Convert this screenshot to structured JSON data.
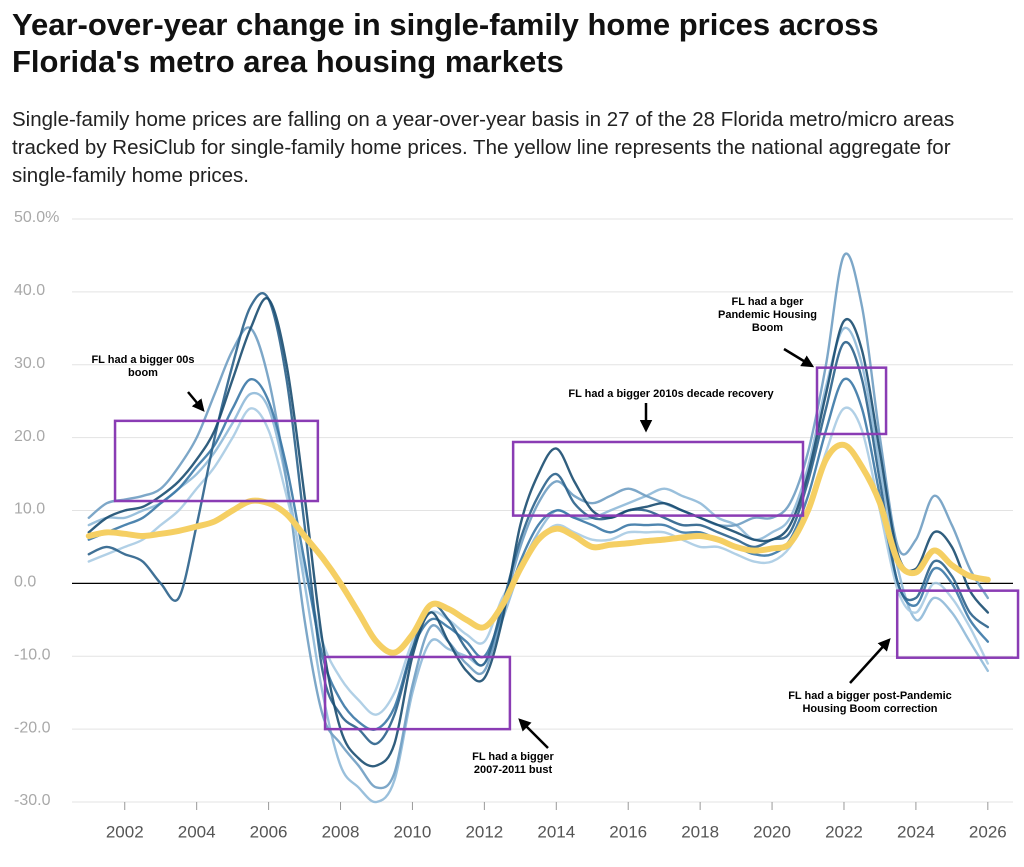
{
  "chart_data": {
    "type": "line",
    "title": "Year-over-year change in single-family home prices across Florida's metro area housing markets",
    "subtitle": "Single-family home prices are falling on a year-over-year basis in 27 of the 28 Florida metro/micro areas tracked by ResiClub for single-family home prices. The yellow line represents the national aggregate for single-family home prices.",
    "x": [
      2001,
      2001.5,
      2002,
      2002.5,
      2003,
      2003.5,
      2004,
      2004.5,
      2005,
      2005.5,
      2006,
      2006.5,
      2007,
      2007.5,
      2008,
      2008.5,
      2009,
      2009.5,
      2010,
      2010.5,
      2011,
      2011.5,
      2012,
      2012.5,
      2013,
      2013.5,
      2014,
      2014.5,
      2015,
      2015.5,
      2016,
      2016.5,
      2017,
      2017.5,
      2018,
      2018.5,
      2019,
      2019.5,
      2020,
      2020.5,
      2021,
      2021.5,
      2022,
      2022.5,
      2023,
      2023.5,
      2024,
      2024.5,
      2025,
      2025.5,
      2026
    ],
    "xlim": [
      2000.7,
      2026.7
    ],
    "xticks": [
      2002,
      2004,
      2006,
      2008,
      2010,
      2012,
      2014,
      2016,
      2018,
      2020,
      2022,
      2024,
      2026
    ],
    "ylim": [
      -30,
      50
    ],
    "yticks": [
      {
        "value": -30,
        "label": "-30.0"
      },
      {
        "value": -20,
        "label": "-20.0"
      },
      {
        "value": -10,
        "label": "-10.0"
      },
      {
        "value": 0,
        "label": "0.0"
      },
      {
        "value": 10,
        "label": "10.0"
      },
      {
        "value": 20,
        "label": "20.0"
      },
      {
        "value": 30,
        "label": "30.0"
      },
      {
        "value": 40,
        "label": "40.0"
      },
      {
        "value": 50,
        "label": "50.0%"
      }
    ],
    "grid": true,
    "series": [
      {
        "color": "#8fb9d8",
        "values": [
          8,
          9,
          9,
          10,
          11,
          13,
          15,
          18,
          22,
          26,
          24,
          14,
          0,
          -15,
          -25,
          -28,
          -30,
          -27,
          -15,
          -8,
          -9,
          -10,
          -11,
          -5,
          2,
          7,
          10,
          9,
          9,
          10,
          11,
          12,
          13,
          12,
          11,
          9,
          8,
          6,
          7,
          9,
          16,
          27,
          35,
          30,
          16,
          2,
          -5,
          -2,
          -4,
          -8,
          -12
        ]
      },
      {
        "color": "#6f9dc2",
        "values": [
          9,
          11,
          11.5,
          12,
          13,
          16,
          20,
          26,
          32,
          35,
          28,
          14,
          -5,
          -18,
          -22,
          -25,
          -28,
          -26,
          -14,
          -6,
          -8,
          -11,
          -12,
          -4,
          5,
          11,
          14,
          12,
          11,
          12,
          13,
          12,
          11,
          10,
          9,
          8,
          8,
          9,
          9,
          11,
          18,
          30,
          45,
          38,
          20,
          5,
          6,
          12,
          8,
          2,
          -2
        ]
      },
      {
        "color": "#a9cbe3",
        "values": [
          3,
          4,
          5,
          6,
          8,
          10,
          13,
          16,
          20,
          24,
          21,
          12,
          2,
          -8,
          -13,
          -16,
          -18,
          -15,
          -8,
          -4,
          -5,
          -7,
          -8,
          -2,
          2,
          6,
          8,
          7,
          6,
          6,
          7,
          7,
          7,
          6,
          5,
          5,
          4,
          3,
          3,
          5,
          10,
          18,
          24,
          21,
          10,
          -1,
          -4,
          0,
          -2,
          -6,
          -11
        ]
      },
      {
        "color": "#3b78a6",
        "values": [
          6,
          7,
          8,
          9,
          11,
          13,
          16,
          19,
          24,
          28,
          25,
          16,
          3,
          -10,
          -16,
          -19,
          -20,
          -17,
          -9,
          -5,
          -6,
          -8,
          -10,
          -4,
          3,
          8,
          10,
          9,
          8,
          7,
          8,
          8,
          8,
          7,
          7,
          6,
          5,
          4,
          4,
          6,
          12,
          21,
          28,
          24,
          12,
          0,
          -3,
          2,
          0,
          -5,
          -8
        ]
      },
      {
        "color": "#2b628b",
        "values": [
          4,
          5,
          4,
          3,
          0,
          -2,
          8,
          20,
          30,
          38,
          39,
          28,
          8,
          -12,
          -18,
          -20,
          -22,
          -18,
          -9,
          -3,
          -5,
          -9,
          -11,
          -3,
          6,
          12,
          15,
          11,
          9,
          9,
          10,
          10,
          9,
          8,
          8,
          7,
          6,
          5,
          6,
          7,
          14,
          24,
          33,
          28,
          14,
          0,
          -2,
          3,
          1,
          -4,
          -6
        ]
      },
      {
        "color": "#1a4d70",
        "values": [
          7,
          9,
          10,
          10.5,
          12,
          14,
          17,
          21,
          28,
          35,
          39,
          30,
          12,
          -8,
          -20,
          -24,
          -25,
          -22,
          -10,
          -4,
          -8,
          -12,
          -13,
          -5,
          8,
          15,
          18.5,
          14,
          10,
          9,
          10,
          10.5,
          11,
          10,
          9,
          8,
          7,
          6,
          6,
          8,
          15,
          26,
          36,
          32,
          18,
          4,
          2,
          7,
          5,
          -1,
          -4
        ]
      },
      {
        "color": "#f5cf63",
        "values": [
          6.5,
          7,
          6.8,
          6.5,
          6.8,
          7.2,
          7.8,
          8.5,
          10,
          11.3,
          11,
          9.5,
          6.5,
          3.5,
          0,
          -4,
          -8,
          -9.5,
          -7,
          -3,
          -3.5,
          -5,
          -6,
          -3,
          2,
          6,
          7.5,
          6.5,
          5,
          5.3,
          5.5,
          5.8,
          6,
          6.3,
          6.5,
          6,
          5,
          4.5,
          4.8,
          5.5,
          10,
          17,
          19,
          16,
          11,
          3,
          1.5,
          4.5,
          2.5,
          1,
          0.5
        ]
      }
    ],
    "annotations": [
      {
        "text": "FL had a bigger 00s boom",
        "x": [
          2001.73,
          2007.37
        ],
        "y": [
          11.3,
          22.3
        ]
      },
      {
        "text": "FL had a bigger 2007-2011 bust",
        "x": [
          2007.57,
          2012.71
        ],
        "y": [
          -20,
          -10.1
        ]
      },
      {
        "text": "FL had a bigger 2010s decade recovery",
        "x": [
          2012.8,
          2020.86
        ],
        "y": [
          9.3,
          19.4
        ]
      },
      {
        "text": "FL had a bger Pandemic Housing Boom",
        "x": [
          2021.25,
          2023.17
        ],
        "y": [
          20.5,
          29.6
        ]
      },
      {
        "text": "FL had a bigger post-Pandemic Housing Boom correction",
        "x": [
          2023.48,
          2026.84
        ],
        "y": [
          -10.2,
          -1
        ]
      }
    ]
  }
}
